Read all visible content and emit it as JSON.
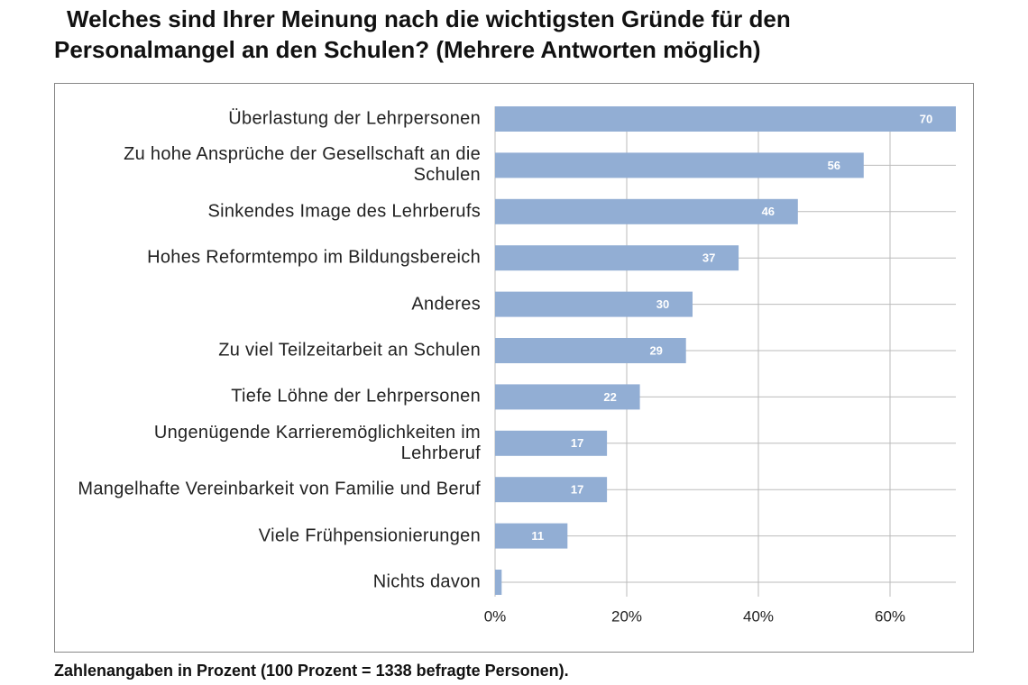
{
  "chart_data": {
    "type": "bar",
    "orientation": "horizontal",
    "title": "Welches sind Ihrer Meinung nach die wichtigsten Gründe für den Personalmangel an den Schulen? (Mehrere Antworten möglich)",
    "note": "Zahlenangaben in Prozent (100 Prozent = 1338 befragte Personen).",
    "categories": [
      "Überlastung der Lehrpersonen",
      "Zu hohe Ansprüche der Gesellschaft an die Schulen",
      "Sinkendes Image des Lehrberufs",
      "Hohes Reformtempo im Bildungsbereich",
      "Anderes",
      "Zu viel Teilzeitarbeit an Schulen",
      "Tiefe Löhne der Lehrpersonen",
      "Ungenügende Karrieremöglichkeiten im Lehrberuf",
      "Mangelhafte Vereinbarkeit von Familie und Beruf",
      "Viele Frühpensionierungen",
      "Nichts davon"
    ],
    "values": [
      70,
      56,
      46,
      37,
      30,
      29,
      22,
      17,
      17,
      11,
      1
    ],
    "value_labels": [
      "70",
      "56",
      "46",
      "37",
      "30",
      "29",
      "22",
      "17",
      "17",
      "11",
      null
    ],
    "color": "#92aed4",
    "xlim": [
      0,
      70
    ],
    "xticks": [
      {
        "value": 0,
        "label": "0%"
      },
      {
        "value": 20,
        "label": "20%"
      },
      {
        "value": 40,
        "label": "40%"
      },
      {
        "value": 60,
        "label": "60%"
      }
    ],
    "grid": true
  }
}
